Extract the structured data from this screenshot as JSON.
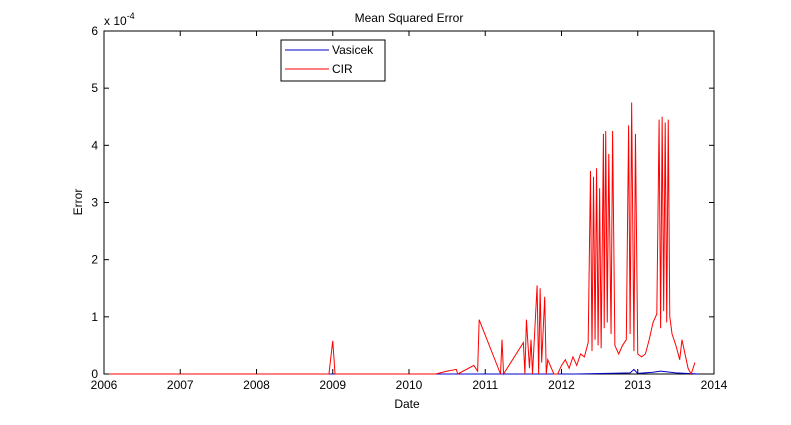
{
  "chart_data": {
    "type": "line",
    "title": "Mean Squared Error",
    "xlabel": "Date",
    "ylabel": "Error",
    "y_exponent_label": "x 10",
    "y_exponent": "-4",
    "xlim": [
      2006,
      2014
    ],
    "ylim": [
      0,
      6
    ],
    "x_ticks": [
      2006,
      2007,
      2008,
      2009,
      2010,
      2011,
      2012,
      2013,
      2014
    ],
    "x_tick_labels": [
      "2006",
      "2007",
      "2008",
      "2009",
      "2010",
      "2011",
      "2012",
      "2013",
      "2014"
    ],
    "y_ticks": [
      0,
      1,
      2,
      3,
      4,
      5,
      6
    ],
    "y_tick_labels": [
      "0",
      "1",
      "2",
      "3",
      "4",
      "5",
      "6"
    ],
    "grid": false,
    "legend_position": "top-left",
    "series": [
      {
        "name": "Vasicek",
        "color": "#0000cc",
        "x": [
          2006.0,
          2008.0,
          2010.0,
          2011.8,
          2012.2,
          2012.6,
          2012.9,
          2012.95,
          2013.0,
          2013.2,
          2013.3,
          2013.5,
          2013.8
        ],
        "values": [
          0.0,
          0.0,
          0.0,
          0.0,
          0.0,
          0.01,
          0.02,
          0.08,
          0.01,
          0.03,
          0.05,
          0.02,
          0.0
        ]
      },
      {
        "name": "CIR",
        "color": "#ff0000",
        "x": [
          2006.0,
          2008.95,
          2009.0,
          2009.03,
          2010.35,
          2010.5,
          2010.62,
          2010.64,
          2010.85,
          2010.9,
          2010.92,
          2011.2,
          2011.22,
          2011.24,
          2011.5,
          2011.52,
          2011.54,
          2011.58,
          2011.6,
          2011.62,
          2011.68,
          2011.7,
          2011.72,
          2011.74,
          2011.78,
          2011.8,
          2011.82,
          2011.9,
          2011.95,
          2012.0,
          2012.05,
          2012.1,
          2012.15,
          2012.2,
          2012.25,
          2012.3,
          2012.35,
          2012.38,
          2012.4,
          2012.42,
          2012.44,
          2012.46,
          2012.48,
          2012.5,
          2012.52,
          2012.55,
          2012.56,
          2012.58,
          2012.6,
          2012.62,
          2012.65,
          2012.67,
          2012.7,
          2012.75,
          2012.8,
          2012.85,
          2012.88,
          2012.9,
          2012.92,
          2012.95,
          2012.97,
          2013.0,
          2013.05,
          2013.1,
          2013.15,
          2013.2,
          2013.25,
          2013.28,
          2013.3,
          2013.32,
          2013.34,
          2013.36,
          2013.38,
          2013.4,
          2013.42,
          2013.45,
          2013.5,
          2013.55,
          2013.58,
          2013.62,
          2013.66,
          2013.7,
          2013.75
        ],
        "values": [
          0.0,
          0.0,
          0.58,
          0.0,
          0.0,
          0.05,
          0.08,
          0.0,
          0.15,
          0.05,
          0.95,
          0.0,
          0.6,
          0.0,
          0.55,
          0.0,
          0.95,
          0.1,
          0.6,
          0.0,
          1.55,
          0.0,
          1.5,
          0.2,
          1.35,
          0.0,
          0.25,
          0.0,
          0.0,
          0.15,
          0.25,
          0.1,
          0.3,
          0.15,
          0.35,
          0.3,
          0.55,
          3.55,
          0.4,
          3.45,
          0.6,
          3.6,
          0.5,
          3.25,
          0.45,
          4.2,
          0.8,
          4.25,
          0.9,
          3.85,
          0.7,
          4.25,
          0.5,
          0.35,
          0.5,
          0.6,
          4.35,
          0.7,
          4.75,
          0.4,
          4.2,
          0.35,
          0.3,
          0.35,
          0.6,
          0.9,
          1.05,
          4.45,
          0.8,
          4.5,
          1.1,
          4.4,
          0.9,
          4.45,
          1.0,
          0.7,
          0.5,
          0.25,
          0.6,
          0.35,
          0.1,
          0.0,
          0.2
        ]
      }
    ]
  }
}
